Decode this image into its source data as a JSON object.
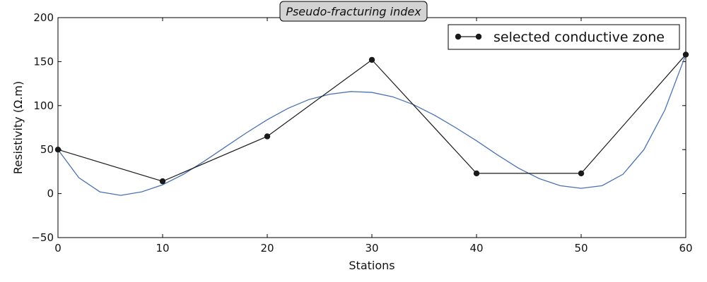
{
  "chart_data": {
    "type": "line",
    "title": "Pseudo-fracturing index",
    "xlabel": "Stations",
    "ylabel": "Resistivity (Ω.m)",
    "xlim": [
      0,
      60
    ],
    "ylim": [
      -50,
      200
    ],
    "x_ticks": [
      0,
      10,
      20,
      30,
      40,
      50,
      60
    ],
    "y_ticks": [
      -50,
      0,
      50,
      100,
      150,
      200
    ],
    "y_tick_labels": [
      "−50",
      "0",
      "50",
      "100",
      "150",
      "200"
    ],
    "grid": false,
    "legend_position": "top-right",
    "series": [
      {
        "name": "selected conductive zone",
        "style": "line-markers",
        "color": "#1a1a1a",
        "x": [
          0,
          10,
          20,
          30,
          40,
          50,
          60
        ],
        "y": [
          50,
          14,
          65,
          152,
          23,
          23,
          158
        ]
      },
      {
        "style": "smooth-line",
        "color": "#4a72b0",
        "x": [
          0,
          2,
          4,
          6,
          8,
          10,
          12,
          14,
          16,
          18,
          20,
          22,
          24,
          26,
          28,
          30,
          32,
          34,
          36,
          38,
          40,
          42,
          44,
          46,
          48,
          50,
          52,
          54,
          56,
          58,
          60
        ],
        "y": [
          50,
          18,
          2,
          -2,
          2,
          10,
          22,
          37,
          53,
          69,
          84,
          97,
          107,
          113,
          116,
          115,
          110,
          101,
          89,
          75,
          60,
          44,
          29,
          17,
          9,
          6,
          9,
          22,
          50,
          95,
          158
        ]
      }
    ]
  }
}
